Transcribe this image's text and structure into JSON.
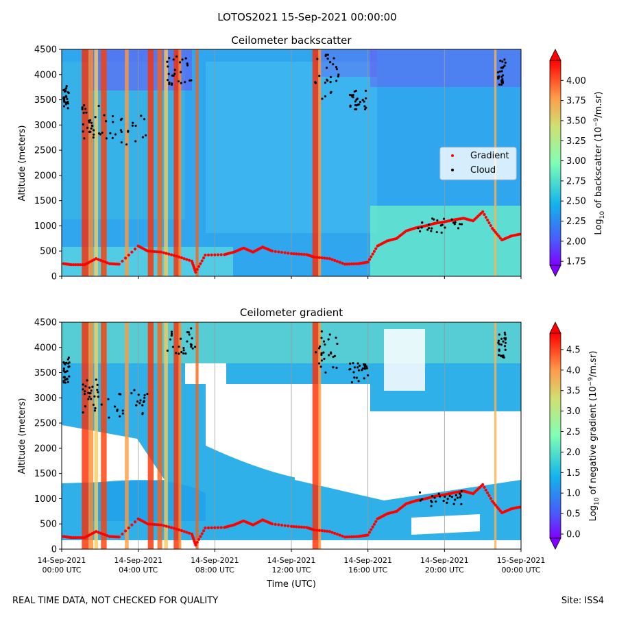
{
  "figure_title": "LOTOS2021 15-Sep-2021 00:00:00",
  "footer": {
    "left": "REAL TIME DATA, NOT CHECKED FOR QUALITY",
    "right": "Site: ISS4"
  },
  "colors": {
    "gradient_marker": "#ff0000",
    "cloud_marker": "#000000",
    "white_gap": "#ffffff"
  },
  "x_axis": {
    "label": "Time (UTC)",
    "ticks": [
      {
        "hour": 0,
        "date": "14-Sep-2021",
        "time": "00:00 UTC"
      },
      {
        "hour": 4,
        "date": "14-Sep-2021",
        "time": "04:00 UTC"
      },
      {
        "hour": 8,
        "date": "14-Sep-2021",
        "time": "08:00 UTC"
      },
      {
        "hour": 12,
        "date": "14-Sep-2021",
        "time": "12:00 UTC"
      },
      {
        "hour": 16,
        "date": "14-Sep-2021",
        "time": "16:00 UTC"
      },
      {
        "hour": 20,
        "date": "14-Sep-2021",
        "time": "20:00 UTC"
      },
      {
        "hour": 24,
        "date": "15-Sep-2021",
        "time": "00:00 UTC"
      }
    ]
  },
  "chart_data": [
    {
      "type": "heatmap",
      "title": "Ceilometer backscatter",
      "xlabel": "Time (UTC)",
      "ylabel": "Altitude (meters)",
      "xlim_hours": [
        0,
        24
      ],
      "ylim": [
        0,
        4500
      ],
      "yticks": [
        "0",
        "500",
        "1000",
        "1500",
        "2000",
        "2500",
        "3000",
        "3500",
        "4000",
        "4500"
      ],
      "colorbar": {
        "label": "Log10 of backscatter (10−9/m.sr)",
        "label_base": "Log",
        "label_sub": "10",
        "label_mid": " of backscatter (10",
        "label_sup": "−9",
        "label_end": "/m.sr)",
        "range": [
          1.7,
          4.25
        ],
        "ticks": [
          "1.75",
          "2.00",
          "2.25",
          "2.50",
          "2.75",
          "3.00",
          "3.25",
          "3.50",
          "3.75",
          "4.00"
        ],
        "colormap": "rainbow"
      },
      "legend": {
        "placement": "right-center",
        "entries": [
          {
            "name": "Gradient",
            "marker": "red dots"
          },
          {
            "name": "Cloud",
            "marker": "black dots"
          }
        ]
      },
      "gradient_layer": [
        [
          0.1,
          250
        ],
        [
          0.5,
          230
        ],
        [
          1.2,
          230
        ],
        [
          1.8,
          350
        ],
        [
          2.5,
          250
        ],
        [
          3.0,
          240
        ],
        [
          4.0,
          600
        ],
        [
          4.5,
          500
        ],
        [
          5.2,
          480
        ],
        [
          6.0,
          400
        ],
        [
          6.8,
          300
        ],
        [
          7.0,
          80
        ],
        [
          7.5,
          420
        ],
        [
          8.5,
          430
        ],
        [
          9.0,
          480
        ],
        [
          9.5,
          560
        ],
        [
          10.0,
          480
        ],
        [
          10.5,
          580
        ],
        [
          11.0,
          500
        ],
        [
          12.0,
          450
        ],
        [
          12.8,
          430
        ],
        [
          13.2,
          380
        ],
        [
          14.0,
          350
        ],
        [
          14.8,
          240
        ],
        [
          15.5,
          250
        ],
        [
          16.0,
          280
        ],
        [
          16.5,
          600
        ],
        [
          17.0,
          700
        ],
        [
          17.5,
          750
        ],
        [
          18.0,
          900
        ],
        [
          18.5,
          960
        ],
        [
          19.0,
          1000
        ],
        [
          19.5,
          1050
        ],
        [
          20.0,
          1080
        ],
        [
          20.5,
          1120
        ],
        [
          21.0,
          1150
        ],
        [
          21.5,
          1100
        ],
        [
          22.0,
          1280
        ],
        [
          22.5,
          950
        ],
        [
          23.0,
          720
        ],
        [
          23.5,
          800
        ],
        [
          24.0,
          840
        ]
      ],
      "grid": "vertical"
    },
    {
      "type": "heatmap",
      "title": "Ceilometer gradient",
      "xlabel": "Time (UTC)",
      "ylabel": "Altitude (meters)",
      "xlim_hours": [
        0,
        24
      ],
      "ylim": [
        0,
        4500
      ],
      "yticks": [
        "0",
        "500",
        "1000",
        "1500",
        "2000",
        "2500",
        "3000",
        "3500",
        "4000",
        "4500"
      ],
      "colorbar": {
        "label": "Log10 of negative gradient (10−9/m.sr)",
        "label_base": "Log",
        "label_sub": "10",
        "label_mid": " of negative gradient (10",
        "label_sup": "−9",
        "label_end": "/m.sr)",
        "range": [
          -0.1,
          4.9
        ],
        "ticks": [
          "0.0",
          "0.5",
          "1.0",
          "1.5",
          "2.0",
          "2.5",
          "3.0",
          "3.5",
          "4.0",
          "4.5"
        ],
        "colormap": "rainbow"
      },
      "grid": "vertical"
    }
  ]
}
